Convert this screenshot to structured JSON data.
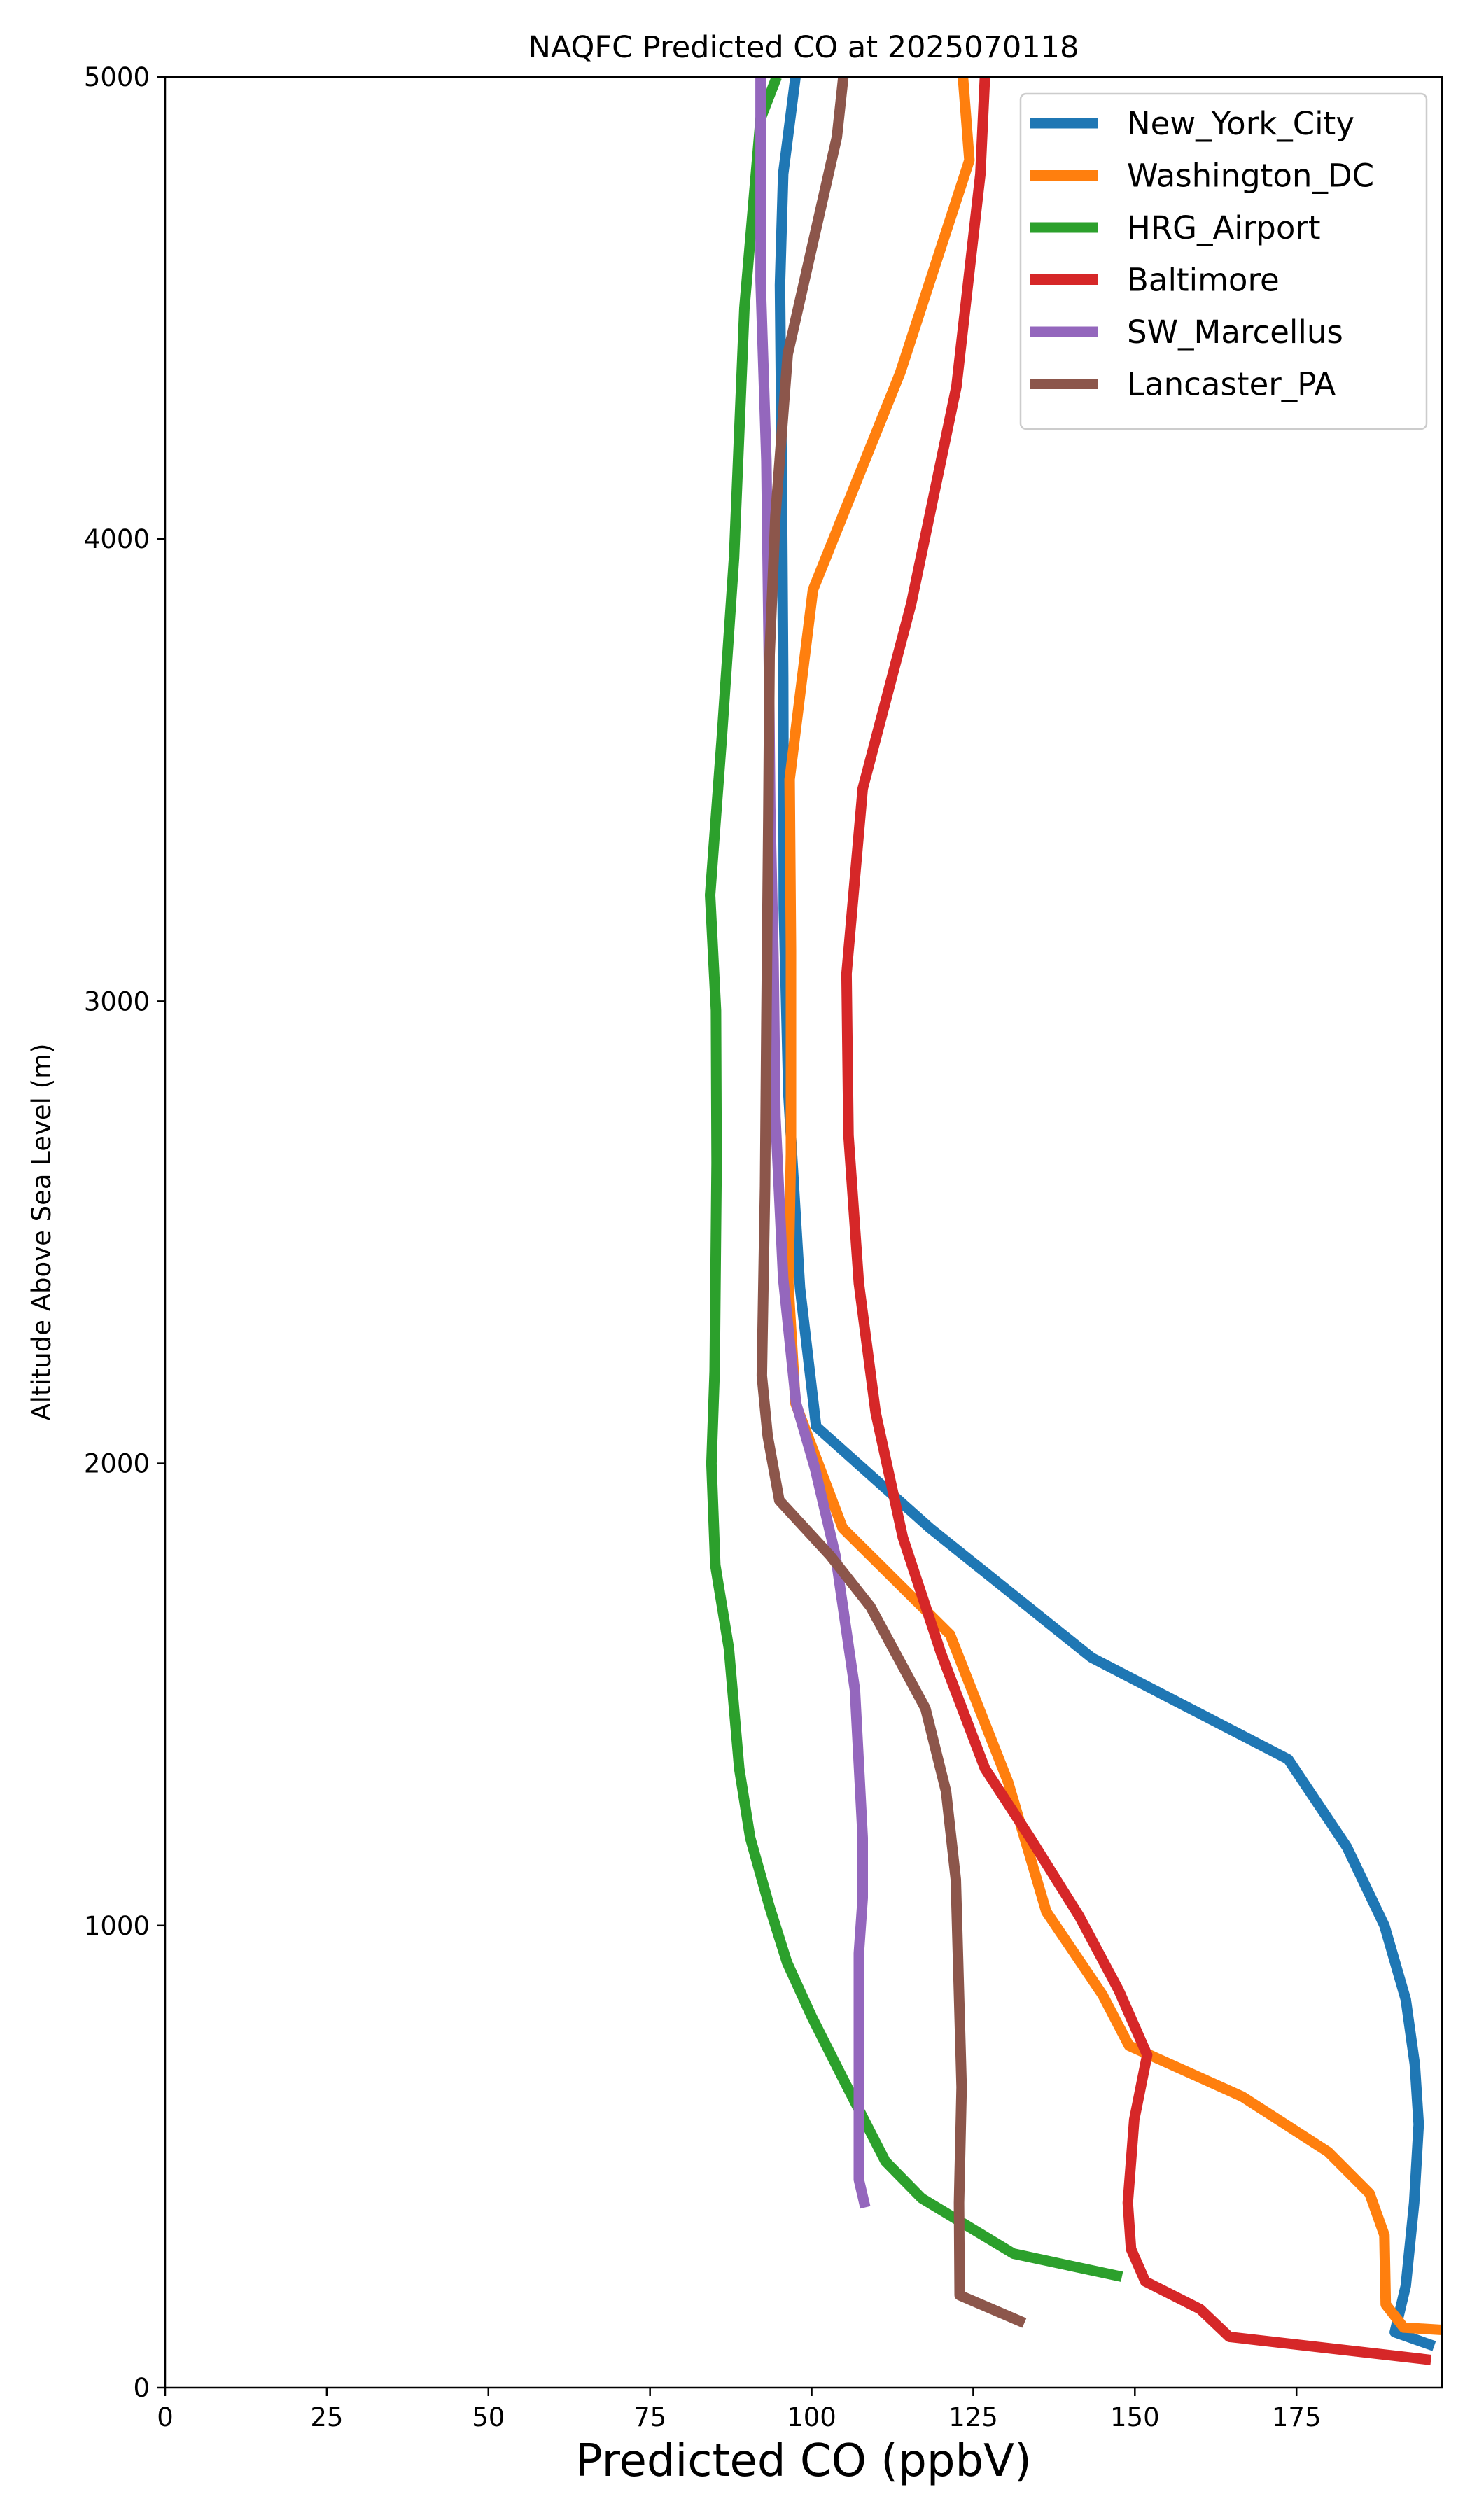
{
  "chart_data": {
    "type": "line",
    "title": "NAQFC Predicted CO at 2025070118",
    "xlabel": "Predicted CO (ppbV)",
    "ylabel": "Altitude Above Sea Level (m)",
    "xlim": [
      0,
      197.5
    ],
    "ylim": [
      0,
      5000
    ],
    "x_ticks": [
      0,
      25,
      50,
      75,
      100,
      125,
      150,
      175
    ],
    "y_ticks": [
      0,
      1000,
      2000,
      3000,
      4000,
      5000
    ],
    "grid": false,
    "legend_position": "top-right",
    "series": [
      {
        "name": "New_York_City",
        "color": "#1f77b4",
        "points": [
          [
            196.3,
            90
          ],
          [
            190.2,
            120
          ],
          [
            191.9,
            220
          ],
          [
            193.2,
            400
          ],
          [
            193.9,
            570
          ],
          [
            193.3,
            700
          ],
          [
            191.9,
            840
          ],
          [
            188.6,
            1000
          ],
          [
            182.8,
            1170
          ],
          [
            173.7,
            1360
          ],
          [
            143.3,
            1580
          ],
          [
            118.3,
            1860
          ],
          [
            100.7,
            2080
          ],
          [
            98.2,
            2380
          ],
          [
            96.4,
            2800
          ],
          [
            95.7,
            3200
          ],
          [
            95.6,
            3700
          ],
          [
            95.4,
            4100
          ],
          [
            95.1,
            4550
          ],
          [
            95.6,
            4790
          ],
          [
            97.5,
            5000
          ]
        ]
      },
      {
        "name": "Washington_DC",
        "color": "#ff7f0e",
        "points": [
          [
            197.5,
            125
          ],
          [
            191.6,
            130
          ],
          [
            188.8,
            180
          ],
          [
            188.6,
            330
          ],
          [
            186.3,
            420
          ],
          [
            179.9,
            510
          ],
          [
            166.6,
            630
          ],
          [
            149.1,
            740
          ],
          [
            145.0,
            850
          ],
          [
            136.3,
            1030
          ],
          [
            130.4,
            1310
          ],
          [
            121.4,
            1630
          ],
          [
            104.8,
            1860
          ],
          [
            97.5,
            2130
          ],
          [
            96.4,
            2390
          ],
          [
            96.8,
            2670
          ],
          [
            96.8,
            3110
          ],
          [
            96.6,
            3480
          ],
          [
            100.2,
            3890
          ],
          [
            113.7,
            4360
          ],
          [
            124.4,
            4820
          ],
          [
            123.4,
            5000
          ]
        ]
      },
      {
        "name": "HRG_Airport",
        "color": "#2ca02c",
        "points": [
          [
            148.0,
            240
          ],
          [
            131.2,
            290
          ],
          [
            117.0,
            410
          ],
          [
            111.4,
            490
          ],
          [
            104.8,
            670
          ],
          [
            100.1,
            800
          ],
          [
            96.2,
            920
          ],
          [
            93.5,
            1040
          ],
          [
            90.5,
            1190
          ],
          [
            88.8,
            1340
          ],
          [
            87.2,
            1600
          ],
          [
            85.1,
            1780
          ],
          [
            84.5,
            2000
          ],
          [
            85.0,
            2200
          ],
          [
            85.3,
            2650
          ],
          [
            85.2,
            2980
          ],
          [
            84.3,
            3230
          ],
          [
            86.1,
            3570
          ],
          [
            88.0,
            3960
          ],
          [
            89.6,
            4500
          ],
          [
            92.1,
            4910
          ],
          [
            94.6,
            5000
          ]
        ]
      },
      {
        "name": "Baltimore",
        "color": "#d62728",
        "points": [
          [
            195.8,
            60
          ],
          [
            164.6,
            110
          ],
          [
            160.1,
            170
          ],
          [
            151.6,
            230
          ],
          [
            149.4,
            300
          ],
          [
            148.9,
            400
          ],
          [
            149.9,
            580
          ],
          [
            151.9,
            720
          ],
          [
            147.5,
            860
          ],
          [
            141.4,
            1020
          ],
          [
            133.8,
            1190
          ],
          [
            126.8,
            1340
          ],
          [
            120.0,
            1590
          ],
          [
            114.1,
            1840
          ],
          [
            109.9,
            2110
          ],
          [
            107.3,
            2390
          ],
          [
            105.7,
            2710
          ],
          [
            105.4,
            3060
          ],
          [
            107.9,
            3460
          ],
          [
            115.4,
            3860
          ],
          [
            122.4,
            4330
          ],
          [
            126.1,
            4790
          ],
          [
            126.8,
            5000
          ]
        ]
      },
      {
        "name": "SW_Marcellus",
        "color": "#9467bd",
        "points": [
          [
            108.3,
            390
          ],
          [
            107.3,
            450
          ],
          [
            107.3,
            940
          ],
          [
            107.9,
            1060
          ],
          [
            107.9,
            1190
          ],
          [
            106.7,
            1510
          ],
          [
            103.7,
            1800
          ],
          [
            100.5,
            1990
          ],
          [
            97.6,
            2130
          ],
          [
            95.6,
            2400
          ],
          [
            94.4,
            2750
          ],
          [
            94.1,
            3090
          ],
          [
            93.6,
            3420
          ],
          [
            93.4,
            3710
          ],
          [
            93.0,
            4170
          ],
          [
            92.1,
            4560
          ],
          [
            92.1,
            5000
          ]
        ]
      },
      {
        "name": "Lancaster_PA",
        "color": "#8c564b",
        "points": [
          [
            132.9,
            140
          ],
          [
            122.9,
            200
          ],
          [
            122.8,
            400
          ],
          [
            123.2,
            650
          ],
          [
            122.3,
            1100
          ],
          [
            120.8,
            1290
          ],
          [
            117.6,
            1470
          ],
          [
            109.1,
            1690
          ],
          [
            102.9,
            1800
          ],
          [
            95.0,
            1920
          ],
          [
            93.2,
            2060
          ],
          [
            92.3,
            2190
          ],
          [
            92.8,
            2600
          ],
          [
            93.0,
            2950
          ],
          [
            93.3,
            3400
          ],
          [
            93.5,
            3750
          ],
          [
            94.4,
            4050
          ],
          [
            96.3,
            4400
          ],
          [
            103.9,
            4870
          ],
          [
            104.9,
            5000
          ]
        ]
      }
    ]
  }
}
